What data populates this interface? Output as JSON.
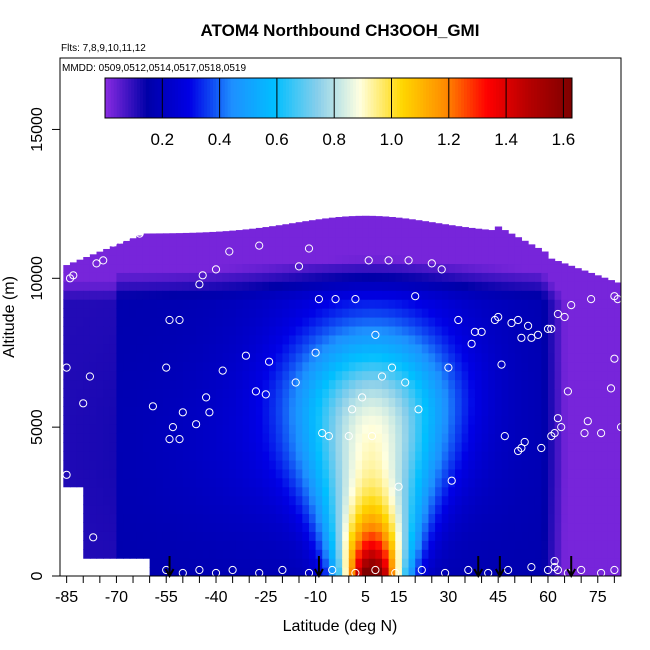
{
  "chart_data": {
    "type": "heatmap",
    "title": "ATOM4 Northbound CH3OOH_GMI",
    "flights_note": "Flts: 7,8,9,10,11,12",
    "dates_note": "MMDD: 0509,0512,0514,0517,0518,0519",
    "xlabel": "Latitude (deg N)",
    "ylabel": "Altitude (m)",
    "xlim": [
      -87,
      82
    ],
    "ylim": [
      0,
      17400
    ],
    "x_ticks": [
      -85,
      -70,
      -55,
      -40,
      -25,
      -10,
      5,
      15,
      30,
      45,
      60,
      75
    ],
    "y_ticks": [
      0,
      5000,
      10000,
      15000
    ],
    "colorbar": {
      "min": 0.0,
      "max": 1.63,
      "ticks": [
        0.2,
        0.4,
        0.6,
        0.8,
        1.0,
        1.2,
        1.4,
        1.6
      ],
      "colors": [
        "#8a2be2",
        "#0000a8",
        "#0000e6",
        "#1e90ff",
        "#00bfff",
        "#87ceeb",
        "#ffffe0",
        "#ffd700",
        "#ff8c00",
        "#ff0000",
        "#b40000",
        "#7f0000"
      ]
    },
    "series": [
      {
        "values": [
          [
            -85,
            7000
          ],
          [
            -85,
            3400
          ],
          [
            -84,
            10000
          ],
          [
            -83,
            10100
          ],
          [
            -80,
            5800
          ],
          [
            -78,
            6700
          ],
          [
            -77,
            1300
          ],
          [
            -76,
            10500
          ],
          [
            -74,
            10600
          ],
          [
            -71,
            11200
          ],
          [
            -69,
            11300
          ],
          [
            -67,
            11400
          ],
          [
            -63,
            11500
          ],
          [
            -59,
            5700
          ],
          [
            -55,
            7000
          ],
          [
            -54,
            8600
          ],
          [
            -51,
            8600
          ],
          [
            -54,
            4600
          ],
          [
            -53,
            5000
          ],
          [
            -51,
            4600
          ],
          [
            -50,
            5500
          ],
          [
            -46,
            5100
          ],
          [
            -43,
            6000
          ],
          [
            -45,
            9800
          ],
          [
            -44,
            10100
          ],
          [
            -40,
            10300
          ],
          [
            -42,
            5500
          ],
          [
            -38,
            6900
          ],
          [
            -36,
            10900
          ],
          [
            -31,
            7400
          ],
          [
            -28,
            6200
          ],
          [
            -27,
            11100
          ],
          [
            -25,
            6100
          ],
          [
            -24,
            7200
          ],
          [
            -20,
            12100
          ],
          [
            -16,
            6500
          ],
          [
            -15,
            10400
          ],
          [
            -12,
            11000
          ],
          [
            -10,
            7500
          ],
          [
            -9,
            9300
          ],
          [
            -8,
            4800
          ],
          [
            -6,
            4700
          ],
          [
            -4,
            9300
          ],
          [
            0,
            4700
          ],
          [
            1,
            5600
          ],
          [
            2,
            9300
          ],
          [
            4,
            6000
          ],
          [
            6,
            10600
          ],
          [
            7,
            4700
          ],
          [
            8,
            8100
          ],
          [
            10,
            6700
          ],
          [
            12,
            10600
          ],
          [
            13,
            7000
          ],
          [
            15,
            3000
          ],
          [
            17,
            6500
          ],
          [
            18,
            10600
          ],
          [
            20,
            9400
          ],
          [
            21,
            5600
          ],
          [
            25,
            10500
          ],
          [
            28,
            10300
          ],
          [
            30,
            7000
          ],
          [
            31,
            3200
          ],
          [
            33,
            8600
          ],
          [
            37,
            7800
          ],
          [
            38,
            8200
          ],
          [
            40,
            8200
          ],
          [
            44,
            8600
          ],
          [
            45,
            8700
          ],
          [
            46,
            7100
          ],
          [
            47,
            4700
          ],
          [
            49,
            8500
          ],
          [
            51,
            8600
          ],
          [
            51,
            4200
          ],
          [
            52,
            4300
          ],
          [
            52,
            8000
          ],
          [
            53,
            4500
          ],
          [
            54,
            8400
          ],
          [
            55,
            8000
          ],
          [
            57,
            8100
          ],
          [
            58,
            4300
          ],
          [
            60,
            8300
          ],
          [
            61,
            8300
          ],
          [
            61,
            4700
          ],
          [
            62,
            4800
          ],
          [
            63,
            5300
          ],
          [
            63,
            8800
          ],
          [
            64,
            5000
          ],
          [
            65,
            8700
          ],
          [
            66,
            6200
          ],
          [
            67,
            9100
          ],
          [
            69,
            10900
          ],
          [
            70,
            10800
          ],
          [
            71,
            10800
          ],
          [
            71,
            4800
          ],
          [
            72,
            5200
          ],
          [
            73,
            9300
          ],
          [
            74,
            11000
          ],
          [
            75,
            10600
          ],
          [
            76,
            4800
          ],
          [
            79,
            6300
          ],
          [
            80,
            9400
          ],
          [
            80,
            7300
          ],
          [
            81,
            9300
          ],
          [
            82,
            5000
          ],
          [
            -55,
            200
          ],
          [
            -50,
            100
          ],
          [
            -45,
            200
          ],
          [
            -40,
            100
          ],
          [
            -35,
            200
          ],
          [
            -27,
            100
          ],
          [
            -20,
            200
          ],
          [
            -12,
            100
          ],
          [
            -5,
            200
          ],
          [
            2,
            100
          ],
          [
            8,
            200
          ],
          [
            14,
            100
          ],
          [
            22,
            200
          ],
          [
            29,
            100
          ],
          [
            36,
            200
          ],
          [
            42,
            100
          ],
          [
            48,
            200
          ],
          [
            55,
            300
          ],
          [
            60,
            200
          ],
          [
            62,
            300
          ],
          [
            63,
            200
          ],
          [
            66,
            100
          ],
          [
            70,
            200
          ],
          [
            76,
            100
          ],
          [
            80,
            200
          ],
          [
            62,
            500
          ]
        ]
      }
    ],
    "arrows_x": [
      -54,
      -9,
      39,
      45.5,
      67
    ]
  }
}
